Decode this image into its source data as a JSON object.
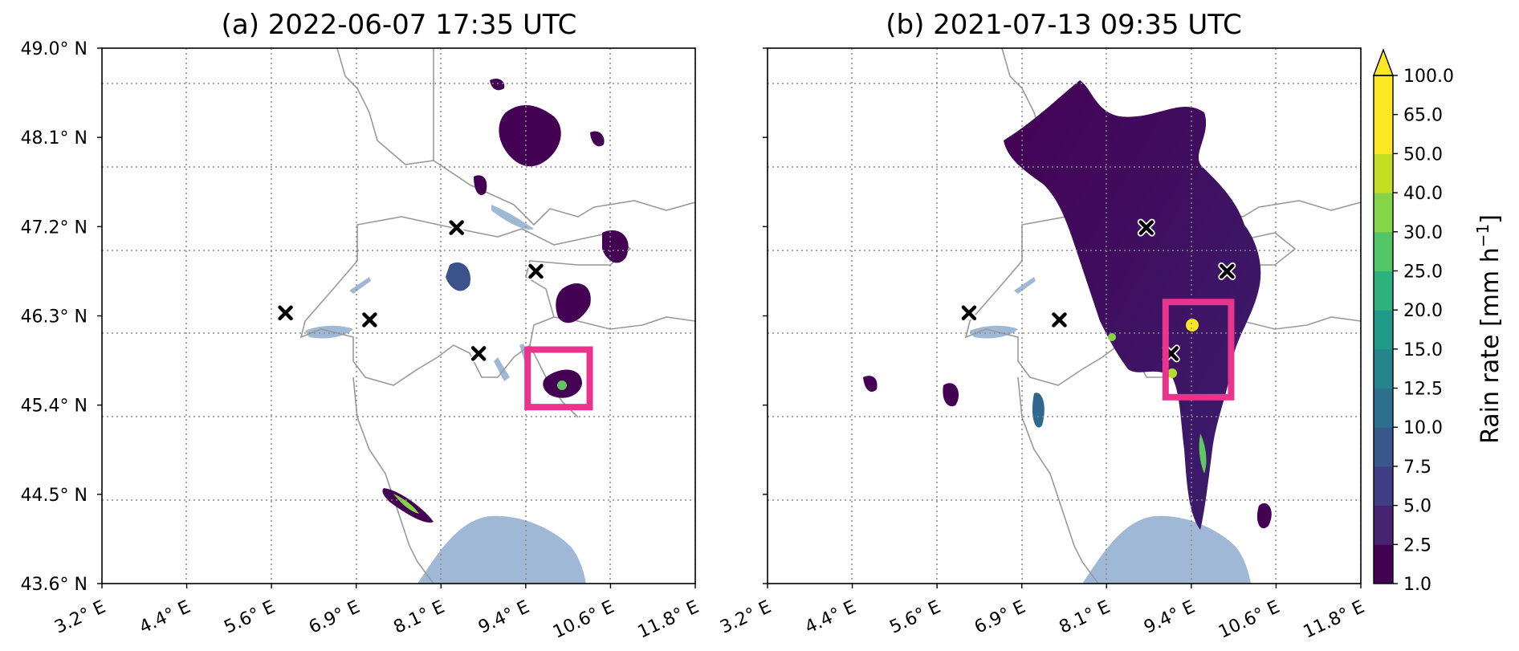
{
  "colorbar": {
    "label_text": "Rain rate [mm h",
    "label_sup": "−1",
    "label_close": "]",
    "levels": [
      "1.0",
      "2.5",
      "5.0",
      "7.5",
      "10.0",
      "12.5",
      "15.0",
      "20.0",
      "25.0",
      "30.0",
      "40.0",
      "50.0",
      "65.0",
      "100.0"
    ],
    "colors": [
      "#440154",
      "#482172",
      "#423e85",
      "#38588c",
      "#2d708e",
      "#25858e",
      "#1f9a8a",
      "#2db27d",
      "#52c569",
      "#86d549",
      "#c2df23",
      "#fde725",
      "#fde725"
    ]
  },
  "axes": {
    "lon_ticks": [
      "3.2° E",
      "4.4° E",
      "5.6° E",
      "6.9° E",
      "8.1° E",
      "9.4° E",
      "10.6° E",
      "11.8° E"
    ],
    "lat_ticks": [
      "49.0° N",
      "48.1° N",
      "47.2° N",
      "46.3° N",
      "45.4° N",
      "44.5° N",
      "43.6° N"
    ]
  },
  "colors": {
    "lake": "#9fb8d6",
    "marker_box": "#e8348c",
    "border": "#999999",
    "grid": "#888888"
  },
  "chart_data": [
    {
      "type": "heatmap",
      "title": "(a) 2022-06-07 17:35 UTC",
      "xlim": [
        3.2,
        11.8
      ],
      "ylim": [
        43.6,
        49.0
      ],
      "grid": true,
      "stations": [
        [
          5.86,
          46.33
        ],
        [
          7.08,
          46.26
        ],
        [
          8.34,
          47.19
        ],
        [
          8.66,
          45.92
        ],
        [
          9.49,
          46.75
        ]
      ],
      "highlight_box": {
        "lon": [
          9.37,
          10.27
        ],
        "lat": [
          45.38,
          45.96
        ]
      },
      "rain_cells": [
        {
          "lon": 9.2,
          "lat": 48.5,
          "rate": 5.0
        },
        {
          "lon": 10.0,
          "lat": 48.4,
          "rate": 2.5
        },
        {
          "lon": 9.0,
          "lat": 47.9,
          "rate": 2.5
        },
        {
          "lon": 10.5,
          "lat": 47.1,
          "rate": 5.0
        },
        {
          "lon": 8.3,
          "lat": 46.9,
          "rate": 15.0
        },
        {
          "lon": 9.7,
          "lat": 46.5,
          "rate": 5.0
        },
        {
          "lon": 9.9,
          "lat": 45.7,
          "rate": 40.0
        },
        {
          "lon": 6.7,
          "lat": 44.5,
          "rate": 30.0
        }
      ]
    },
    {
      "type": "heatmap",
      "title": "(b) 2021-07-13 09:35 UTC",
      "xlim": [
        3.2,
        11.8
      ],
      "ylim": [
        43.6,
        49.0
      ],
      "grid": true,
      "stations": [
        [
          6.12,
          46.33
        ],
        [
          7.43,
          46.26
        ],
        [
          8.69,
          47.19
        ],
        [
          9.05,
          45.92
        ],
        [
          9.86,
          46.75
        ]
      ],
      "highlight_box": {
        "lon": [
          8.97,
          9.92
        ],
        "lat": [
          45.48,
          46.44
        ]
      },
      "rain_cells": [
        {
          "lon": 8.5,
          "lat": 47.8,
          "rate": 5.0
        },
        {
          "lon": 9.5,
          "lat": 47.4,
          "rate": 7.5
        },
        {
          "lon": 8.3,
          "lat": 46.6,
          "rate": 10.0
        },
        {
          "lon": 9.4,
          "lat": 46.0,
          "rate": 50.0
        },
        {
          "lon": 9.8,
          "lat": 45.0,
          "rate": 30.0
        },
        {
          "lon": 10.7,
          "lat": 44.8,
          "rate": 20.0
        },
        {
          "lon": 6.7,
          "lat": 45.8,
          "rate": 5.0
        },
        {
          "lon": 7.6,
          "lat": 45.5,
          "rate": 15.0
        }
      ]
    }
  ]
}
